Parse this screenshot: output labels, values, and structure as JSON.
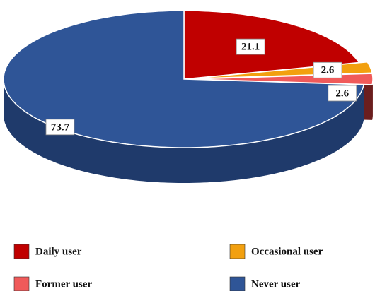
{
  "chart_data": {
    "type": "pie3d",
    "categories": [
      "Daily user",
      "Occasional user",
      "Former user",
      "Never user"
    ],
    "values": [
      21.1,
      2.6,
      2.6,
      73.7
    ],
    "colors": [
      "#c00000",
      "#f2a00f",
      "#f05a5a",
      "#2f5597"
    ],
    "side_colors": [
      "#7a1010",
      "#a86a05",
      "#6b1e1e",
      "#1f3a6b"
    ],
    "exploded": [
      false,
      true,
      true,
      false
    ],
    "legend": "bottom"
  }
}
